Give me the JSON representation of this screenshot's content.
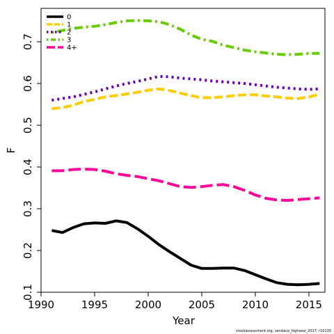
{
  "chart_data": {
    "type": "line",
    "title": "",
    "xlabel": "Year",
    "ylabel": "F",
    "xlim": [
      1990,
      2016.5
    ],
    "ylim": [
      0.1,
      0.78
    ],
    "xticks": [
      1990,
      1995,
      2000,
      2005,
      2010,
      2015
    ],
    "yticks": [
      0.1,
      0.2,
      0.3,
      0.4,
      0.5,
      0.6,
      0.7
    ],
    "x": [
      1991,
      1992,
      1993,
      1994,
      1995,
      1996,
      1997,
      1998,
      1999,
      2000,
      2001,
      2002,
      2003,
      2004,
      2005,
      2006,
      2007,
      2008,
      2009,
      2010,
      2011,
      2012,
      2013,
      2014,
      2015,
      2016
    ],
    "legend_position": "top-left",
    "series": [
      {
        "name": "0",
        "color": "#000000",
        "dash": "solid",
        "values": [
          0.248,
          0.243,
          0.255,
          0.264,
          0.266,
          0.265,
          0.271,
          0.267,
          0.252,
          0.234,
          0.214,
          0.197,
          0.181,
          0.165,
          0.157,
          0.157,
          0.158,
          0.158,
          0.152,
          0.142,
          0.132,
          0.123,
          0.119,
          0.118,
          0.119,
          0.121
        ]
      },
      {
        "name": "1",
        "color": "#FFCC00",
        "dash": "dashed",
        "values": [
          0.54,
          0.542,
          0.548,
          0.557,
          0.562,
          0.568,
          0.571,
          0.575,
          0.579,
          0.584,
          0.587,
          0.583,
          0.577,
          0.571,
          0.566,
          0.566,
          0.568,
          0.571,
          0.573,
          0.573,
          0.57,
          0.568,
          0.565,
          0.564,
          0.568,
          0.574
        ]
      },
      {
        "name": "2",
        "color": "#6600AA",
        "dash": "dotted",
        "values": [
          0.56,
          0.564,
          0.568,
          0.574,
          0.58,
          0.587,
          0.594,
          0.6,
          0.605,
          0.611,
          0.617,
          0.616,
          0.613,
          0.611,
          0.609,
          0.606,
          0.604,
          0.602,
          0.6,
          0.597,
          0.594,
          0.591,
          0.589,
          0.587,
          0.586,
          0.587
        ]
      },
      {
        "name": "3",
        "color": "#66CC00",
        "dash": "dotdash",
        "values": [
          0.722,
          0.727,
          0.732,
          0.735,
          0.737,
          0.741,
          0.746,
          0.75,
          0.751,
          0.75,
          0.748,
          0.741,
          0.73,
          0.716,
          0.706,
          0.701,
          0.692,
          0.686,
          0.68,
          0.676,
          0.673,
          0.67,
          0.669,
          0.67,
          0.672,
          0.672
        ]
      },
      {
        "name": "4+",
        "color": "#FF0099",
        "dash": "longdash",
        "values": [
          0.391,
          0.391,
          0.394,
          0.395,
          0.394,
          0.39,
          0.384,
          0.38,
          0.377,
          0.372,
          0.367,
          0.36,
          0.353,
          0.351,
          0.353,
          0.356,
          0.358,
          0.353,
          0.344,
          0.333,
          0.325,
          0.321,
          0.32,
          0.322,
          0.324,
          0.326
        ]
      }
    ]
  },
  "footer": {
    "credit": "stockassessment.org, vendace_highseal_2017, r10135"
  }
}
